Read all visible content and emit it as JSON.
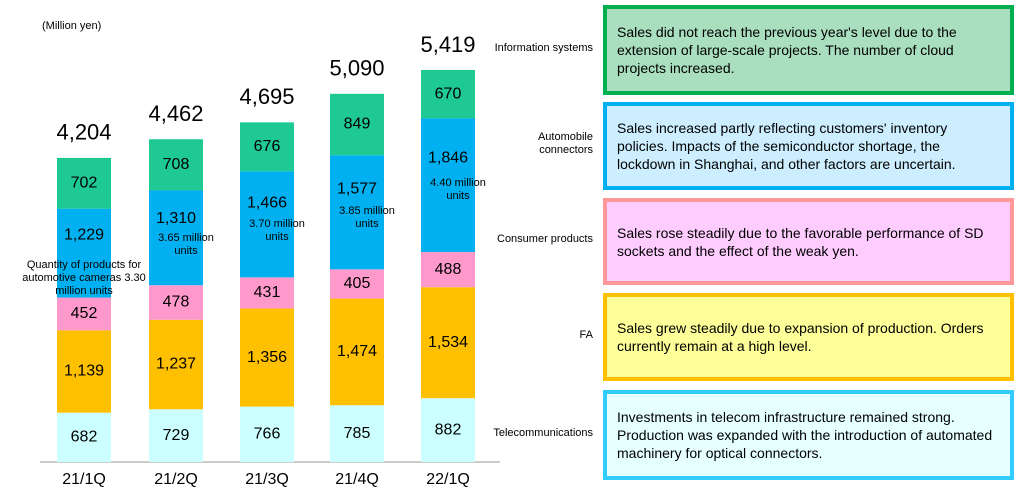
{
  "chart_data": {
    "type": "stacked-bar",
    "unit_note": "(Million yen)",
    "categories": [
      "21/1Q",
      "21/2Q",
      "21/3Q",
      "21/4Q",
      "22/1Q"
    ],
    "totals": [
      4204,
      4462,
      4695,
      5090,
      5419
    ],
    "total_labels": [
      "4,204",
      "4,462",
      "4,695",
      "5,090",
      "5,419"
    ],
    "series": [
      {
        "name": "Telecommunications",
        "color": "#ccffff",
        "values": [
          682,
          729,
          766,
          785,
          882
        ],
        "value_labels": [
          "682",
          "729",
          "766",
          "785",
          "882"
        ],
        "description": "Investments in telecom infrastructure remained strong. Production was expanded with the introduction of automated machinery for optical connectors.",
        "box_border": "#33ccff",
        "box_fill": "#e6ffff"
      },
      {
        "name": "FA",
        "color": "#ffc000",
        "values": [
          1139,
          1237,
          1356,
          1474,
          1534
        ],
        "value_labels": [
          "1,139",
          "1,237",
          "1,356",
          "1,474",
          "1,534"
        ],
        "description": "Sales grew steadily due to expansion of production. Orders currently remain at a high level.",
        "box_border": "#ffc000",
        "box_fill": "#ffff99"
      },
      {
        "name": "Consumer products",
        "color": "#ff99cc",
        "values": [
          452,
          478,
          431,
          405,
          488
        ],
        "value_labels": [
          "452",
          "478",
          "431",
          "405",
          "488"
        ],
        "description": "Sales rose steadily due to the favorable performance of SD sockets and the effect of the weak yen.",
        "box_border": "#ff9999",
        "box_fill": "#ffccff"
      },
      {
        "name": "Automobile connectors",
        "color": "#00b0f0",
        "values": [
          1229,
          1310,
          1466,
          1577,
          1846
        ],
        "value_labels": [
          "1,229",
          "1,310",
          "1,466",
          "1,577",
          "1,846"
        ],
        "description": "Sales increased partly reflecting customers' inventory policies. Impacts of the semiconductor shortage, the lockdown in Shanghai, and other factors are uncertain.",
        "box_border": "#00b0f0",
        "box_fill": "#cceeff"
      },
      {
        "name": "Information systems",
        "color": "#1fc994",
        "values": [
          702,
          708,
          676,
          849,
          670
        ],
        "value_labels": [
          "702",
          "708",
          "676",
          "849",
          "670"
        ],
        "description": "Sales did not reach the previous year's level due to the extension of large-scale projects. The number of cloud projects increased.",
        "box_border": "#00b050",
        "box_fill": "#a9dfbf"
      }
    ],
    "annotations": [
      "Quantity of products for automotive cameras 3.30 million units",
      "3.65 million units",
      "3.70 million units",
      "3.85 million units",
      "4.40 million units"
    ]
  }
}
